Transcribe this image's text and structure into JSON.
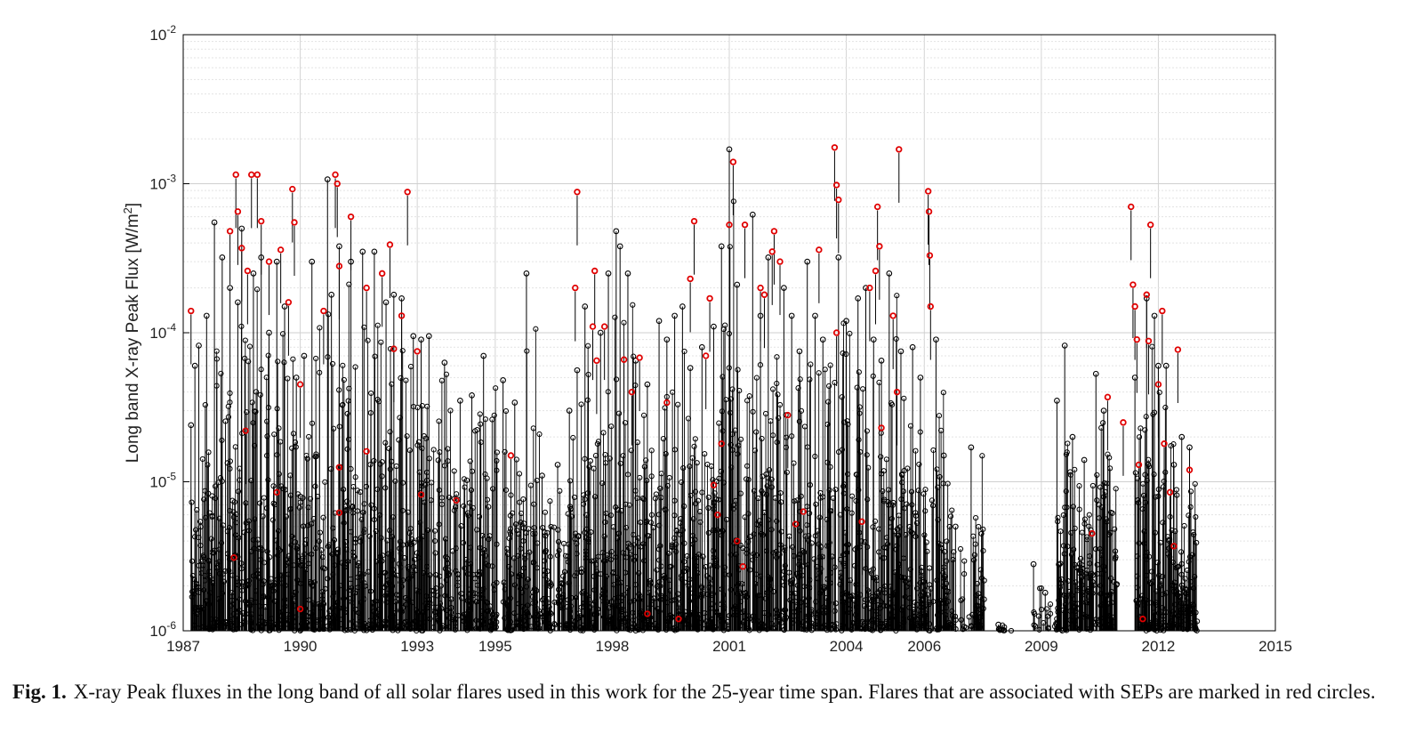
{
  "chart_data": {
    "type": "scatter",
    "ylabel": "Long band X-ray Peak Flux [W/m²]",
    "ylabel_parts": {
      "text": "Long band X-ray Peak Flux [W/m",
      "sup": "2",
      "close": "]"
    },
    "xlabel": "",
    "xlim": [
      1987,
      2015
    ],
    "x_ticks": [
      "1987",
      "1990",
      "1993",
      "1995",
      "1998",
      "2001",
      "2004",
      "2006",
      "2009",
      "2012",
      "2015"
    ],
    "y_scale": "log",
    "ylim": [
      1e-06,
      0.01
    ],
    "y_ticks": [
      {
        "value": 0.01,
        "base": "10",
        "exp": "-2"
      },
      {
        "value": 0.001,
        "base": "10",
        "exp": "-3"
      },
      {
        "value": 0.0001,
        "base": "10",
        "exp": "-4"
      },
      {
        "value": 1e-05,
        "base": "10",
        "exp": "-5"
      },
      {
        "value": 1e-06,
        "base": "10",
        "exp": "-6"
      }
    ],
    "grid": true,
    "marker": "open-circle-stem",
    "series": [
      {
        "color": "#000000",
        "values": [
          [
            1987.2,
            2.4e-05
          ],
          [
            1987.3,
            6e-05
          ],
          [
            1987.4,
            8.2e-05
          ],
          [
            1987.6,
            0.00013
          ],
          [
            1987.8,
            0.00055
          ],
          [
            1988.0,
            0.00032
          ],
          [
            1988.2,
            0.0002
          ],
          [
            1988.4,
            0.00016
          ],
          [
            1988.5,
            0.0005
          ],
          [
            1988.8,
            0.00025
          ],
          [
            1989.0,
            0.00032
          ],
          [
            1989.2,
            0.0001
          ],
          [
            1989.4,
            0.0003
          ],
          [
            1989.6,
            0.00015
          ],
          [
            1989.9,
            5e-05
          ],
          [
            1990.1,
            7e-05
          ],
          [
            1990.3,
            0.0003
          ],
          [
            1990.7,
            0.00107
          ],
          [
            1990.8,
            0.00018
          ],
          [
            1991.0,
            0.00038
          ],
          [
            1991.3,
            0.0003
          ],
          [
            1991.6,
            0.00035
          ],
          [
            1991.9,
            0.00035
          ],
          [
            1992.2,
            0.00016
          ],
          [
            1992.4,
            0.00018
          ],
          [
            1992.6,
            0.00017
          ],
          [
            1992.9,
            9.5e-05
          ],
          [
            1993.1,
            9e-05
          ],
          [
            1993.3,
            9.5e-05
          ],
          [
            1993.7,
            6.3e-05
          ],
          [
            1994.1,
            3.5e-05
          ],
          [
            1994.4,
            3.8e-05
          ],
          [
            1994.7,
            7e-05
          ],
          [
            1995.2,
            4.8e-05
          ],
          [
            1995.5,
            3.4e-05
          ],
          [
            1995.8,
            0.00025
          ],
          [
            1996.2,
            1.1e-05
          ],
          [
            1996.6,
            1.3e-05
          ],
          [
            1996.9,
            3e-05
          ],
          [
            1997.1,
            5.6e-05
          ],
          [
            1997.3,
            0.00015
          ],
          [
            1997.7,
            0.0001
          ],
          [
            1997.9,
            0.00025
          ],
          [
            1998.1,
            0.00048
          ],
          [
            1998.2,
            0.00038
          ],
          [
            1998.4,
            0.00025
          ],
          [
            1998.6,
            6.5e-05
          ],
          [
            1998.9,
            4.5e-05
          ],
          [
            1999.2,
            0.00012
          ],
          [
            1999.4,
            9e-05
          ],
          [
            1999.6,
            0.00013
          ],
          [
            1999.8,
            0.00015
          ],
          [
            2000.0,
            5.8e-05
          ],
          [
            2000.3,
            8e-05
          ],
          [
            2000.6,
            0.00011
          ],
          [
            2000.8,
            0.00038
          ],
          [
            2001.0,
            0.0017
          ],
          [
            2001.2,
            0.00021
          ],
          [
            2001.6,
            0.00062
          ],
          [
            2001.8,
            0.00013
          ],
          [
            2002.0,
            0.00032
          ],
          [
            2002.4,
            0.0002
          ],
          [
            2002.6,
            0.00013
          ],
          [
            2002.8,
            7.5e-05
          ],
          [
            2003.0,
            0.0003
          ],
          [
            2003.2,
            0.00013
          ],
          [
            2003.4,
            9e-05
          ],
          [
            2003.8,
            0.00032
          ],
          [
            2004.0,
            0.00012
          ],
          [
            2004.3,
            0.00017
          ],
          [
            2004.5,
            0.0002
          ],
          [
            2004.7,
            9e-05
          ],
          [
            2004.9,
            6.5e-05
          ],
          [
            2005.1,
            0.00025
          ],
          [
            2005.4,
            7.5e-05
          ],
          [
            2005.7,
            8e-05
          ],
          [
            2005.9,
            5e-05
          ],
          [
            2006.3,
            9e-05
          ],
          [
            2006.5,
            1.5e-05
          ],
          [
            2006.8,
            5e-06
          ],
          [
            2007.2,
            1.7e-05
          ],
          [
            2007.9,
            1.1e-06
          ],
          [
            2008.8,
            2.8e-06
          ],
          [
            2009.1,
            1.8e-06
          ],
          [
            2009.4,
            3.5e-05
          ],
          [
            2009.6,
            8.2e-05
          ],
          [
            2009.8,
            2e-05
          ],
          [
            2010.1,
            1.4e-05
          ],
          [
            2010.4,
            5.3e-05
          ],
          [
            2010.6,
            3e-05
          ],
          [
            2011.4,
            5e-05
          ],
          [
            2011.7,
            0.00017
          ],
          [
            2011.9,
            0.00013
          ],
          [
            2012.0,
            6e-05
          ],
          [
            2012.2,
            6e-05
          ],
          [
            2012.4,
            1.3e-05
          ],
          [
            2012.6,
            2e-05
          ],
          [
            2012.8,
            1.7e-05
          ]
        ]
      },
      {
        "color": "#e00000",
        "values": [
          [
            1987.2,
            0.00014
          ],
          [
            1988.2,
            0.00048
          ],
          [
            1988.35,
            0.00115
          ],
          [
            1988.4,
            0.00065
          ],
          [
            1988.5,
            0.00037
          ],
          [
            1988.65,
            0.00026
          ],
          [
            1988.75,
            0.00115
          ],
          [
            1988.9,
            0.00115
          ],
          [
            1989.0,
            0.00056
          ],
          [
            1989.2,
            0.0003
          ],
          [
            1989.5,
            0.00036
          ],
          [
            1989.7,
            0.00016
          ],
          [
            1989.8,
            0.00092
          ],
          [
            1989.85,
            0.00055
          ],
          [
            1990.0,
            4.5e-05
          ],
          [
            1990.6,
            0.00014
          ],
          [
            1990.9,
            0.00115
          ],
          [
            1990.95,
            0.001
          ],
          [
            1991.0,
            0.00028
          ],
          [
            1991.3,
            0.0006
          ],
          [
            1991.7,
            0.0002
          ],
          [
            1992.1,
            0.00025
          ],
          [
            1992.3,
            0.00039
          ],
          [
            1992.4,
            7.8e-05
          ],
          [
            1992.6,
            0.00013
          ],
          [
            1992.75,
            0.00088
          ],
          [
            1991.0,
            1.25e-05
          ],
          [
            1991.0,
            6.2e-06
          ],
          [
            1990.0,
            1.4e-06
          ],
          [
            1989.4,
            8.5e-06
          ],
          [
            1988.3,
            3.1e-06
          ],
          [
            1988.6,
            2.2e-05
          ],
          [
            1991.7,
            1.6e-05
          ],
          [
            1993.0,
            7.5e-05
          ],
          [
            1993.1,
            8.2e-06
          ],
          [
            1995.4,
            1.5e-05
          ],
          [
            1994.0,
            7.5e-06
          ],
          [
            1997.1,
            0.00088
          ],
          [
            1997.05,
            0.0002
          ],
          [
            1997.5,
            0.00011
          ],
          [
            1997.55,
            0.00026
          ],
          [
            1997.6,
            6.5e-05
          ],
          [
            1997.8,
            0.00011
          ],
          [
            1998.3,
            6.6e-05
          ],
          [
            1998.5,
            4e-05
          ],
          [
            1998.7,
            6.8e-05
          ],
          [
            1998.9,
            1.3e-06
          ],
          [
            1999.4,
            3.4e-05
          ],
          [
            1999.7,
            1.2e-06
          ],
          [
            2000.1,
            0.00056
          ],
          [
            2000.0,
            0.00023
          ],
          [
            2000.5,
            0.00017
          ],
          [
            2000.4,
            7e-05
          ],
          [
            2000.6,
            9.5e-06
          ],
          [
            2000.7,
            6e-06
          ],
          [
            2000.8,
            1.8e-05
          ],
          [
            2001.1,
            0.0014
          ],
          [
            2001.0,
            0.00053
          ],
          [
            2001.2,
            4e-06
          ],
          [
            2001.35,
            2.7e-06
          ],
          [
            2001.4,
            0.00053
          ],
          [
            2001.8,
            0.0002
          ],
          [
            2001.9,
            0.00018
          ],
          [
            2002.1,
            0.00035
          ],
          [
            2002.15,
            0.00048
          ],
          [
            2002.3,
            0.0003
          ],
          [
            2002.5,
            2.8e-05
          ],
          [
            2002.7,
            5.2e-06
          ],
          [
            2002.9,
            6.3e-06
          ],
          [
            2003.3,
            0.00036
          ],
          [
            2003.7,
            0.00175
          ],
          [
            2003.75,
            0.00098
          ],
          [
            2003.8,
            0.00078
          ],
          [
            2003.75,
            0.0001
          ],
          [
            2004.4,
            5.4e-06
          ],
          [
            2004.6,
            0.0002
          ],
          [
            2004.75,
            0.00026
          ],
          [
            2004.8,
            0.0007
          ],
          [
            2004.85,
            0.00038
          ],
          [
            2004.9,
            2.3e-05
          ],
          [
            2005.2,
            0.00013
          ],
          [
            2005.3,
            4e-05
          ],
          [
            2005.35,
            0.0017
          ],
          [
            2006.1,
            0.00089
          ],
          [
            2006.12,
            0.00065
          ],
          [
            2006.14,
            0.00033
          ],
          [
            2006.16,
            0.00015
          ],
          [
            2010.3,
            4.5e-06
          ],
          [
            2010.7,
            3.7e-05
          ],
          [
            2011.1,
            2.5e-05
          ],
          [
            2011.3,
            0.0007
          ],
          [
            2011.35,
            0.00021
          ],
          [
            2011.4,
            0.00015
          ],
          [
            2011.45,
            9e-05
          ],
          [
            2011.5,
            1.3e-05
          ],
          [
            2011.6,
            1.2e-06
          ],
          [
            2011.7,
            0.00018
          ],
          [
            2011.8,
            0.00053
          ],
          [
            2011.75,
            8.8e-05
          ],
          [
            2012.0,
            4.5e-05
          ],
          [
            2012.1,
            0.00014
          ],
          [
            2012.15,
            1.8e-05
          ],
          [
            2012.3,
            8.5e-06
          ],
          [
            2012.4,
            3.7e-06
          ],
          [
            2012.5,
            7.7e-05
          ],
          [
            2012.8,
            1.2e-05
          ]
        ]
      }
    ]
  },
  "caption": {
    "label": "Fig. 1.",
    "text": "X-ray Peak fluxes in the long band of all solar flares used in this work for the 25-year time span. Flares that are associated with SEPs are marked in red circles."
  }
}
